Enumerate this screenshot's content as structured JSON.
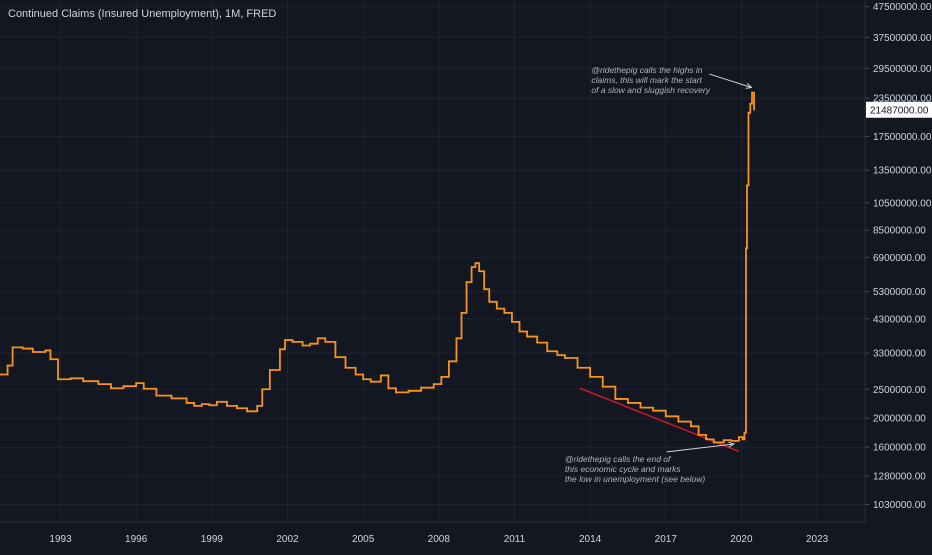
{
  "title": "Continued Claims (Insured Unemployment), 1M, FRED",
  "colors": {
    "background": "#131722",
    "grid": "#1f2430",
    "series": "#f7931a",
    "trendline": "#c21b24",
    "price_label_bg": "#ffffff",
    "price_label_text": "#131722",
    "axis_text": "#d1d4dc",
    "annotation_text": "#b2b5be"
  },
  "chart_data": {
    "type": "line",
    "step": true,
    "scale": "log",
    "xlim": [
      1990.6,
      2024.9
    ],
    "ylim": [
      900000,
      50000000
    ],
    "grid": true,
    "x_ticks": [
      1993,
      1996,
      1999,
      2002,
      2005,
      2008,
      2011,
      2014,
      2017,
      2020,
      2023
    ],
    "y_ticks": [
      {
        "value": 1030000,
        "label": "1030000.00"
      },
      {
        "value": 1280000,
        "label": "1280000.00"
      },
      {
        "value": 1600000,
        "label": "1600000.00"
      },
      {
        "value": 2000000,
        "label": "2000000.00"
      },
      {
        "value": 2500000,
        "label": "2500000.00"
      },
      {
        "value": 3300000,
        "label": "3300000.00"
      },
      {
        "value": 4300000,
        "label": "4300000.00"
      },
      {
        "value": 5300000,
        "label": "5300000.00"
      },
      {
        "value": 6900000,
        "label": "6900000.00"
      },
      {
        "value": 8500000,
        "label": "8500000.00"
      },
      {
        "value": 10500000,
        "label": "10500000.00"
      },
      {
        "value": 13500000,
        "label": "13500000.00"
      },
      {
        "value": 17500000,
        "label": "17500000.00"
      },
      {
        "value": 23500000,
        "label": "23500000.00"
      },
      {
        "value": 29500000,
        "label": "29500000.00"
      },
      {
        "value": 37500000,
        "label": "37500000.00"
      },
      {
        "value": 47500000,
        "label": "47500000.00"
      }
    ],
    "last_value": {
      "value": 21487000,
      "label": "21487000.00"
    },
    "series": [
      {
        "points": [
          [
            1990.6,
            2800000
          ],
          [
            1990.9,
            3000000
          ],
          [
            1991.1,
            3450000
          ],
          [
            1991.5,
            3420000
          ],
          [
            1991.9,
            3330000
          ],
          [
            1992.4,
            3370000
          ],
          [
            1992.6,
            3150000
          ],
          [
            1992.9,
            2700000
          ],
          [
            1993.4,
            2720000
          ],
          [
            1993.9,
            2660000
          ],
          [
            1994.5,
            2600000
          ],
          [
            1995.0,
            2520000
          ],
          [
            1995.5,
            2560000
          ],
          [
            1996.0,
            2620000
          ],
          [
            1996.3,
            2510000
          ],
          [
            1996.8,
            2380000
          ],
          [
            1997.4,
            2330000
          ],
          [
            1998.0,
            2250000
          ],
          [
            1998.3,
            2200000
          ],
          [
            1998.6,
            2230000
          ],
          [
            1998.9,
            2210000
          ],
          [
            1999.2,
            2270000
          ],
          [
            1999.6,
            2200000
          ],
          [
            2000.0,
            2160000
          ],
          [
            2000.4,
            2110000
          ],
          [
            2000.8,
            2200000
          ],
          [
            2001.0,
            2500000
          ],
          [
            2001.3,
            2900000
          ],
          [
            2001.7,
            3400000
          ],
          [
            2001.9,
            3650000
          ],
          [
            2002.2,
            3600000
          ],
          [
            2002.6,
            3500000
          ],
          [
            2002.9,
            3550000
          ],
          [
            2003.2,
            3700000
          ],
          [
            2003.5,
            3600000
          ],
          [
            2003.9,
            3200000
          ],
          [
            2004.3,
            2950000
          ],
          [
            2004.7,
            2800000
          ],
          [
            2005.0,
            2700000
          ],
          [
            2005.3,
            2650000
          ],
          [
            2005.7,
            2780000
          ],
          [
            2006.0,
            2520000
          ],
          [
            2006.3,
            2440000
          ],
          [
            2006.8,
            2470000
          ],
          [
            2007.3,
            2530000
          ],
          [
            2007.8,
            2600000
          ],
          [
            2008.1,
            2750000
          ],
          [
            2008.4,
            3100000
          ],
          [
            2008.7,
            3700000
          ],
          [
            2008.9,
            4500000
          ],
          [
            2009.1,
            5700000
          ],
          [
            2009.3,
            6400000
          ],
          [
            2009.45,
            6600000
          ],
          [
            2009.6,
            6200000
          ],
          [
            2009.8,
            5400000
          ],
          [
            2010.0,
            4900000
          ],
          [
            2010.3,
            4650000
          ],
          [
            2010.6,
            4500000
          ],
          [
            2010.9,
            4200000
          ],
          [
            2011.2,
            3900000
          ],
          [
            2011.5,
            3750000
          ],
          [
            2011.9,
            3580000
          ],
          [
            2012.3,
            3350000
          ],
          [
            2012.7,
            3250000
          ],
          [
            2013.0,
            3180000
          ],
          [
            2013.5,
            2950000
          ],
          [
            2014.0,
            2750000
          ],
          [
            2014.5,
            2550000
          ],
          [
            2015.0,
            2320000
          ],
          [
            2015.5,
            2250000
          ],
          [
            2016.0,
            2170000
          ],
          [
            2016.5,
            2120000
          ],
          [
            2017.0,
            2030000
          ],
          [
            2017.5,
            1950000
          ],
          [
            2018.0,
            1880000
          ],
          [
            2018.3,
            1760000
          ],
          [
            2018.6,
            1700000
          ],
          [
            2018.9,
            1660000
          ],
          [
            2019.3,
            1690000
          ],
          [
            2019.6,
            1680000
          ],
          [
            2019.9,
            1730000
          ],
          [
            2020.05,
            1700000
          ],
          [
            2020.12,
            1790000
          ],
          [
            2020.18,
            7400000
          ],
          [
            2020.22,
            12000000
          ],
          [
            2020.28,
            21000000
          ],
          [
            2020.35,
            22500000
          ],
          [
            2020.42,
            24500000
          ],
          [
            2020.5,
            21487000
          ]
        ]
      }
    ],
    "trendline": {
      "from": [
        2013.6,
        2520000
      ],
      "to": [
        2019.9,
        1550000
      ]
    },
    "annotations": [
      {
        "id": "highs",
        "lines": [
          "@ridethepig calls the highs in",
          "claims, this will mark the start",
          "of a slow and sluggish recovery"
        ],
        "text_at": [
          2014.05,
          28500000
        ],
        "arrow_to": [
          2020.4,
          25500000
        ]
      },
      {
        "id": "low",
        "lines": [
          "@ridethepig calls the end of",
          "this economic cycle and marks",
          "the low in unemployment (see below)"
        ],
        "text_at": [
          2013.0,
          1430000
        ],
        "arrow_to": [
          2019.7,
          1640000
        ]
      }
    ]
  }
}
